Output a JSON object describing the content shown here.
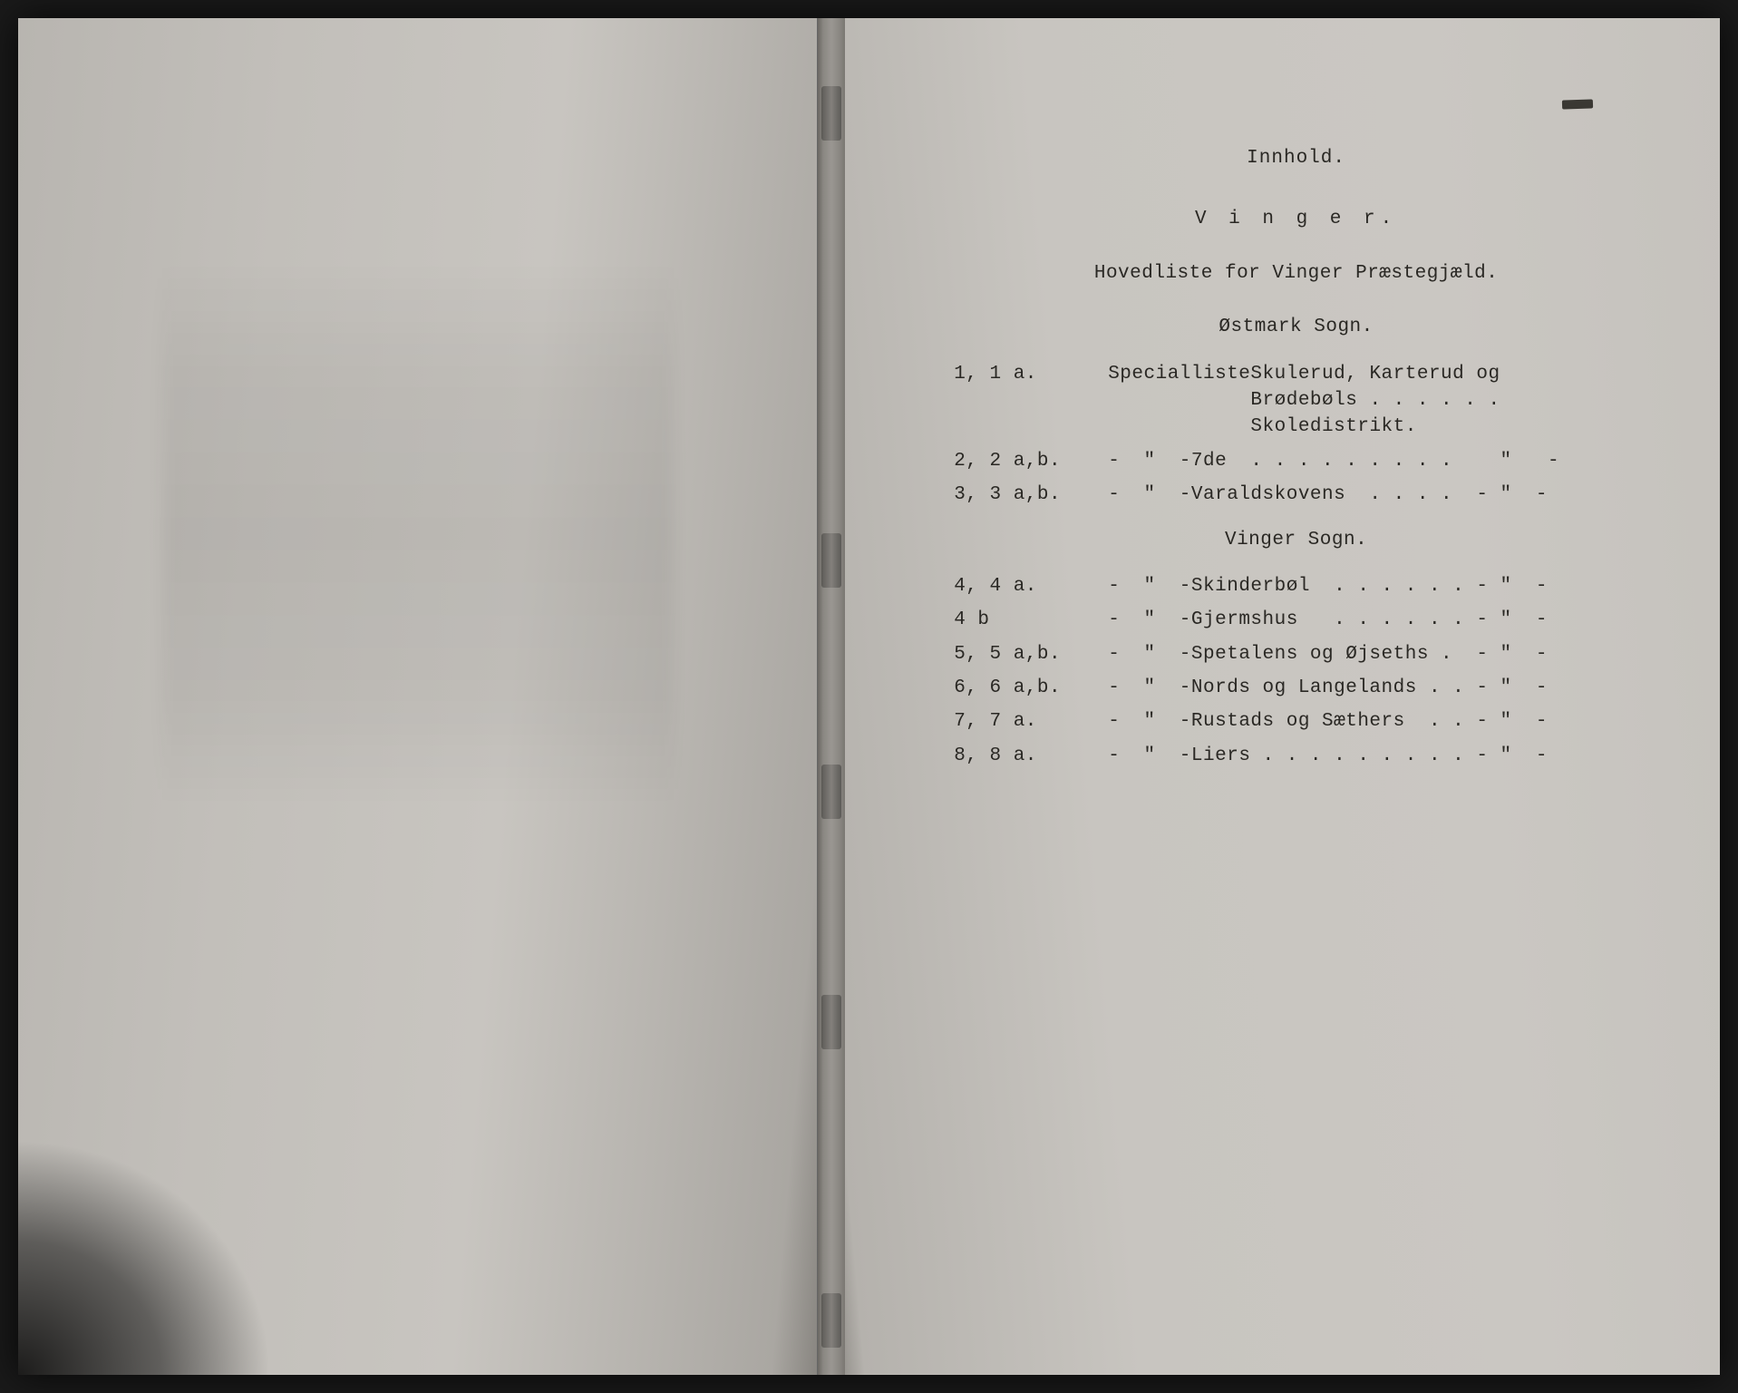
{
  "document": {
    "header_title": "Innhold.",
    "header_sub": "V i n g e r.",
    "header_line": "Hovedliste for Vinger Præstegjæld.",
    "sections": [
      {
        "head": "Østmark Sogn.",
        "rows": [
          {
            "num": "1, 1 a.",
            "ditto": "Specialliste",
            "desc": "Skulerud, Karterud og\nBrødebøls . . . . . . Skoledistrikt."
          },
          {
            "num": "2, 2 a,b.",
            "ditto": "-  \"  -",
            "desc": "7de  . . . . . . . . .    \"   -"
          },
          {
            "num": "3, 3 a,b.",
            "ditto": "-  \"  -",
            "desc": "Varaldskovens  . . . .  - \"  -"
          }
        ]
      },
      {
        "head": "Vinger Sogn.",
        "rows": [
          {
            "num": "4, 4 a.",
            "ditto": "-  \"  -",
            "desc": "Skinderbøl  . . . . . . - \"  -"
          },
          {
            "num": "4 b",
            "ditto": "-  \"  -",
            "desc": "Gjermshus   . . . . . . - \"  -"
          },
          {
            "num": "5, 5 a,b.",
            "ditto": "-  \"  -",
            "desc": "Spetalens og Øjseths .  - \"  -"
          },
          {
            "num": "6, 6 a,b.",
            "ditto": "-  \"  -",
            "desc": "Nords og Langelands . . - \"  -"
          },
          {
            "num": "7, 7 a.",
            "ditto": "-  \"  -",
            "desc": "Rustads og Sæthers  . . - \"  -"
          },
          {
            "num": "8, 8 a.",
            "ditto": "-  \"  -",
            "desc": "Liers . . . . . . . . . - \"  -"
          }
        ]
      }
    ]
  },
  "style": {
    "page_bg_left": "#c2bfba",
    "page_bg_right": "#c8c5c0",
    "text_color": "#2a2824",
    "font_family": "Courier New",
    "font_size_pt": 16,
    "binding_marks_top_pct": [
      5,
      38,
      55,
      72,
      94
    ]
  }
}
